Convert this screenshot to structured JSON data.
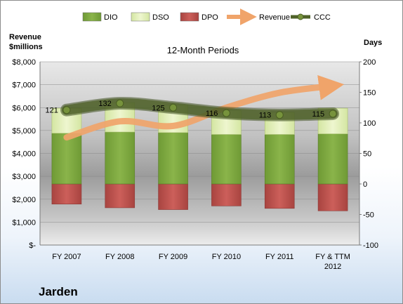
{
  "chart_data": {
    "type": "bar",
    "title": "12-Month Periods",
    "company": "Jarden",
    "categories": [
      [
        "FY 2007"
      ],
      [
        "FY 2008"
      ],
      [
        "FY 2009"
      ],
      [
        "FY 2010"
      ],
      [
        "FY 2011"
      ],
      [
        "FY & TTM",
        "2012"
      ]
    ],
    "left_axis": {
      "title_lines": [
        "Revenue",
        "$millions"
      ],
      "range": [
        0,
        8000
      ],
      "ticks": [
        "$-",
        "$1,000",
        "$2,000",
        "$3,000",
        "$4,000",
        "$5,000",
        "$6,000",
        "$7,000",
        "$8,000"
      ]
    },
    "right_axis": {
      "title": "Days",
      "range": [
        -100,
        200
      ],
      "ticks": [
        "-100",
        "-50",
        "0",
        "50",
        "100",
        "150",
        "200"
      ]
    },
    "series": [
      {
        "name": "DIO",
        "kind": "bar",
        "color": "#7aa23c",
        "values": [
          83,
          85,
          84,
          81,
          81,
          82
        ]
      },
      {
        "name": "DSO",
        "kind": "bar",
        "color": "#dfeeb0",
        "values": [
          41,
          48,
          45,
          39,
          36,
          42
        ]
      },
      {
        "name": "DPO",
        "kind": "bar",
        "color": "#c0504d",
        "values": [
          -33,
          -39,
          -42,
          -36,
          -40,
          -44
        ]
      },
      {
        "name": "Revenue",
        "kind": "line",
        "axis": "left",
        "color": "#f0a46a",
        "values": [
          4700,
          5400,
          5200,
          6000,
          6650,
          6950
        ]
      },
      {
        "name": "CCC",
        "kind": "line",
        "axis": "right",
        "color": "#4f6228",
        "values": [
          121,
          132,
          125,
          116,
          113,
          115
        ],
        "labels": [
          "121",
          "132",
          "125",
          "116",
          "113",
          "115"
        ]
      }
    ],
    "grid": true,
    "legend_position": "top"
  }
}
